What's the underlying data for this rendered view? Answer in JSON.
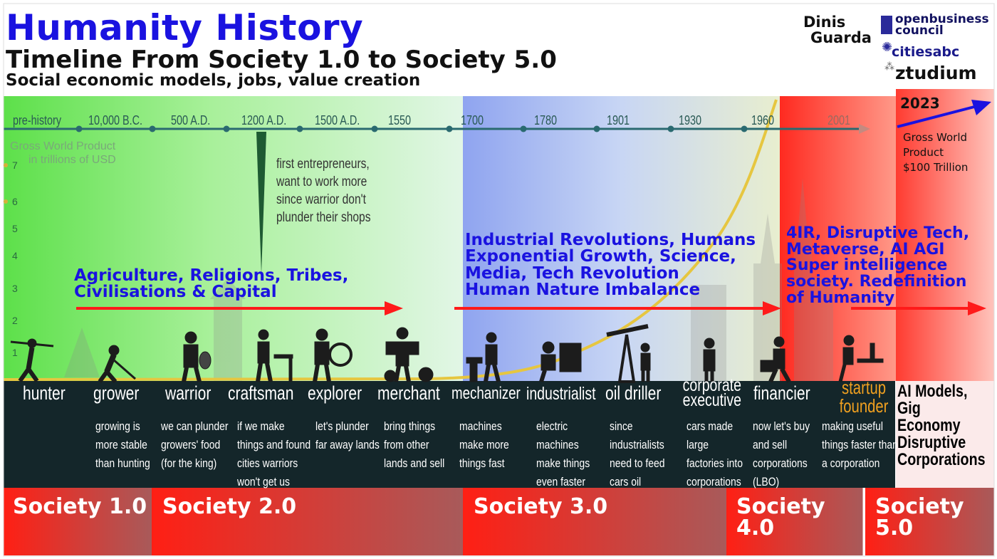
{
  "header": {
    "title": "Humanity History",
    "subtitle": "Timeline From Society 1.0 to Society 5.0",
    "tagline": "Social economic models, jobs, value creation"
  },
  "logos": {
    "dinis_line1": "Dinis",
    "dinis_line2": "Guarda",
    "obc_line1": "openbusiness",
    "obc_line2": "council",
    "citiesabc": "citiesabc",
    "ztudium": "ztudium"
  },
  "timeline": {
    "ticks": [
      "pre-history",
      "10,000 B.C.",
      "500 A.D.",
      "1200 A.D.",
      "1500 A.D.",
      "1550",
      "1700",
      "1780",
      "1901",
      "1930",
      "1960",
      "2001"
    ],
    "gwp_label_line1": "Gross World Product",
    "gwp_label_line2": "in trillions of USD",
    "y_ticks": [
      "7",
      "6",
      "5",
      "4",
      "3",
      "2",
      "1"
    ],
    "year_2023": "2023",
    "gwp_note": [
      "Gross World",
      "Product",
      "$100 Trillion"
    ]
  },
  "annotations": {
    "entrepreneurs": [
      "first entrepreneurs,",
      "want to work more",
      "since warrior don't",
      "plunder their shops"
    ]
  },
  "eras": [
    {
      "lines": [
        "Agriculture, Religions, Tribes,",
        "Civilisations & Capital"
      ]
    },
    {
      "lines": [
        "Industrial Revolutions, Humans",
        "Exponential Growth, Science,",
        "Media, Tech Revolution",
        "Human Nature Imbalance"
      ]
    },
    {
      "lines": [
        "4IR, Disruptive Tech,",
        "Metaverse, AI AGI",
        "Super intelligence",
        "society. Redefinition",
        "of Humanity"
      ]
    }
  ],
  "roles": [
    {
      "name": "hunter",
      "desc": ""
    },
    {
      "name": "grower",
      "desc": "growing is\nmore stable\nthan hunting"
    },
    {
      "name": "warrior",
      "desc": "we can plunder\ngrowers' food\n(for the king)"
    },
    {
      "name": "craftsman",
      "desc": "if we make\nthings and found\ncities warriors\nwon't get us"
    },
    {
      "name": "explorer",
      "desc": "let's plunder\nfar away lands"
    },
    {
      "name": "merchant",
      "desc": "bring things\nfrom other\nlands and sell"
    },
    {
      "name": "mechanizer",
      "desc": "machines\nmake more\nthings fast"
    },
    {
      "name": "industrialist",
      "desc": "electric\nmachines\nmake things\neven faster"
    },
    {
      "name": "oil driller",
      "desc": "since\nindustrialists\nneed to feed\ncars oil"
    },
    {
      "name": "corporate\nexecutive",
      "desc": "cars made\nlarge\nfactories into\ncorporations"
    },
    {
      "name": "financier",
      "desc": "now let's buy\nand sell\n corporations\n(LBO)"
    },
    {
      "name": "startup\nfounder",
      "desc": "making useful\nthings faster than\na corporation"
    }
  ],
  "ai_text": [
    "AI Models,",
    "Gig Economy",
    "Disruptive",
    "Corporations"
  ],
  "societies": [
    "Society 1.0",
    "Society 2.0",
    "Society 3.0",
    "Society 4.0",
    "Society 5.0"
  ],
  "colors": {
    "title_blue": "#1a12e0",
    "era_blue": "#1a12e0",
    "arrow_red": "#ff1a1a",
    "dark_band": "#14262a",
    "startup_orange": "#f0a020",
    "society_red": "#e8201a"
  }
}
